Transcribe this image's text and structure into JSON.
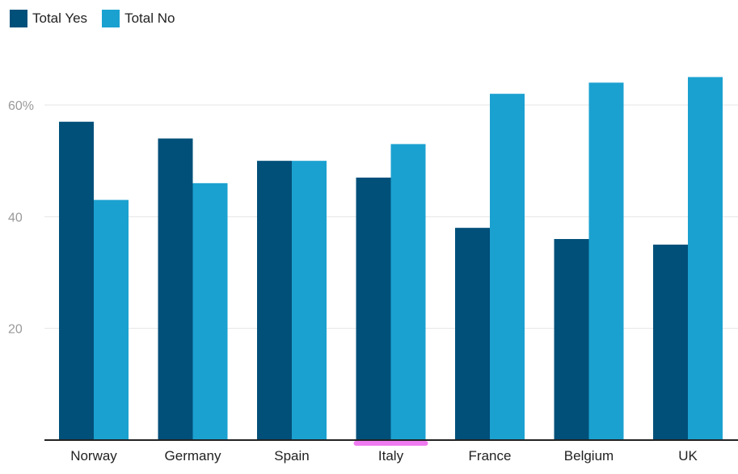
{
  "colors": {
    "yes": "#01507a",
    "no": "#1ba1d0",
    "grid": "#e5e5e5",
    "axis": "#222222",
    "highlight": "#ef7bf0"
  },
  "chart_data": {
    "type": "bar",
    "title": "",
    "xlabel": "",
    "ylabel": "",
    "categories": [
      "Norway",
      "Germany",
      "Spain",
      "Italy",
      "France",
      "Belgium",
      "UK"
    ],
    "series": [
      {
        "name": "Total Yes",
        "values": [
          57,
          54,
          50,
          47,
          38,
          36,
          35
        ]
      },
      {
        "name": "Total No",
        "values": [
          43,
          46,
          50,
          53,
          62,
          64,
          65
        ]
      }
    ],
    "ylim": [
      0,
      70
    ],
    "yticks": [
      20,
      40,
      60
    ],
    "ytick_labels": [
      "20",
      "40",
      "60%"
    ],
    "grid": true,
    "legend": "top-left",
    "highlighted_category": "Italy"
  }
}
